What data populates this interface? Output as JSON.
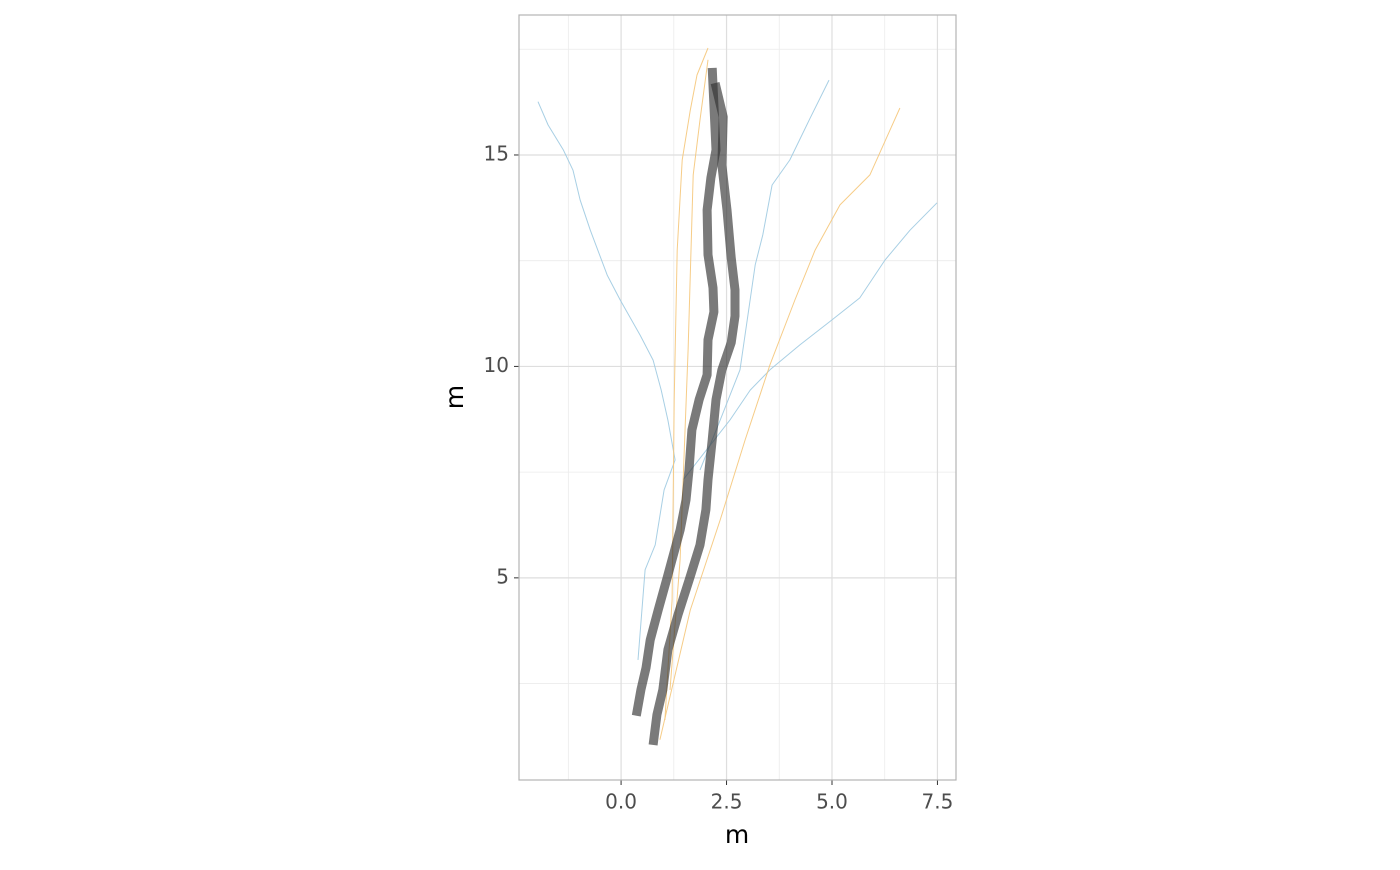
{
  "chart_data": {
    "type": "line",
    "x_label": "m",
    "y_label": "m",
    "xlim": [
      -2.42,
      7.94
    ],
    "ylim": [
      0.22,
      18.31
    ],
    "xticks": [
      {
        "value": 0,
        "label": "0.0"
      },
      {
        "value": 2.5,
        "label": "2.5"
      },
      {
        "value": 5,
        "label": "5.0"
      },
      {
        "value": 7.5,
        "label": "7.5"
      }
    ],
    "yticks": [
      5,
      10,
      15
    ],
    "x_minor_grid": [
      -1.25,
      1.25,
      3.75,
      6.25
    ],
    "y_minor_grid": [
      2.5,
      7.5,
      12.5,
      17.5
    ],
    "grid": true,
    "series": [
      {
        "color": "#9ecae1",
        "width": 1,
        "opacity": 0.9,
        "x": [
          0.4,
          0.57,
          0.81,
          1.02,
          1.28,
          1.11,
          0.95,
          0.76,
          0.45,
          -0.02,
          -0.33,
          -0.73,
          -0.97,
          -1.14,
          -1.37,
          -1.73,
          -1.97
        ],
        "values": [
          3.06,
          5.19,
          5.78,
          7.08,
          7.79,
          8.73,
          9.44,
          10.15,
          10.74,
          11.57,
          12.16,
          13.22,
          13.93,
          14.64,
          15.12,
          15.71,
          16.26
        ]
      },
      {
        "color": "#9ecae1",
        "width": 1,
        "opacity": 0.9,
        "x": [
          1.47,
          2.58,
          3.06,
          3.53,
          4.24,
          5.0,
          5.66,
          6.26,
          6.85,
          7.49
        ],
        "values": [
          7.32,
          8.73,
          9.44,
          9.92,
          10.51,
          11.1,
          11.62,
          12.52,
          13.22,
          13.87
        ]
      },
      {
        "color": "#9ecae1",
        "width": 1,
        "opacity": 0.9,
        "x": [
          1.87,
          2.35,
          2.82,
          3.18,
          3.36,
          3.58,
          4.0,
          4.48,
          4.93
        ],
        "values": [
          7.55,
          8.73,
          9.92,
          12.4,
          13.11,
          14.29,
          14.88,
          15.87,
          16.77
        ]
      },
      {
        "color": "#f5c77a",
        "width": 1,
        "opacity": 0.9,
        "x": [
          1.04,
          1.21,
          1.26,
          1.33,
          1.45,
          1.64,
          1.8,
          2.06
        ],
        "values": [
          1.64,
          4.48,
          9.21,
          12.75,
          14.88,
          16.06,
          16.89,
          17.53
        ]
      },
      {
        "color": "#f5c77a",
        "width": 1,
        "opacity": 0.9,
        "x": [
          1.16,
          1.4,
          1.59,
          1.71,
          1.87,
          2.06
        ],
        "values": [
          2.35,
          5.43,
          10.39,
          14.53,
          15.83,
          17.25
        ]
      },
      {
        "color": "#f5c77a",
        "width": 1,
        "opacity": 0.9,
        "x": [
          0.92,
          1.64,
          2.35,
          2.94,
          3.53,
          4.12,
          4.6,
          5.19,
          5.9,
          6.61
        ],
        "values": [
          1.17,
          4.24,
          6.37,
          8.26,
          10.04,
          11.57,
          12.75,
          13.82,
          14.53,
          16.11
        ]
      },
      {
        "color": "#333333",
        "width": 9,
        "opacity": 0.65,
        "x": [
          0.36,
          0.47,
          0.59,
          0.69,
          0.88,
          1.09,
          1.4,
          1.54,
          1.61,
          1.68,
          1.85,
          2.04,
          2.06,
          2.2,
          2.18,
          2.06,
          2.04,
          2.13,
          2.25,
          2.16
        ],
        "values": [
          1.74,
          2.35,
          2.87,
          3.53,
          4.24,
          5.0,
          6.13,
          6.84,
          7.55,
          8.5,
          9.21,
          9.8,
          10.63,
          11.29,
          11.86,
          12.64,
          13.7,
          14.46,
          15.12,
          17.06
        ]
      },
      {
        "color": "#333333",
        "width": 9,
        "opacity": 0.65,
        "x": [
          0.76,
          0.85,
          0.99,
          1.11,
          1.35,
          1.63,
          1.87,
          2.01,
          2.06,
          2.16,
          2.25,
          2.39,
          2.61,
          2.7,
          2.7,
          2.61,
          2.51,
          2.39,
          2.42,
          2.23
        ],
        "values": [
          1.05,
          1.76,
          2.35,
          3.3,
          4.13,
          5.0,
          5.78,
          6.61,
          7.32,
          8.26,
          9.21,
          9.92,
          10.56,
          11.19,
          11.81,
          12.57,
          13.7,
          14.76,
          15.9,
          16.7
        ]
      }
    ]
  }
}
